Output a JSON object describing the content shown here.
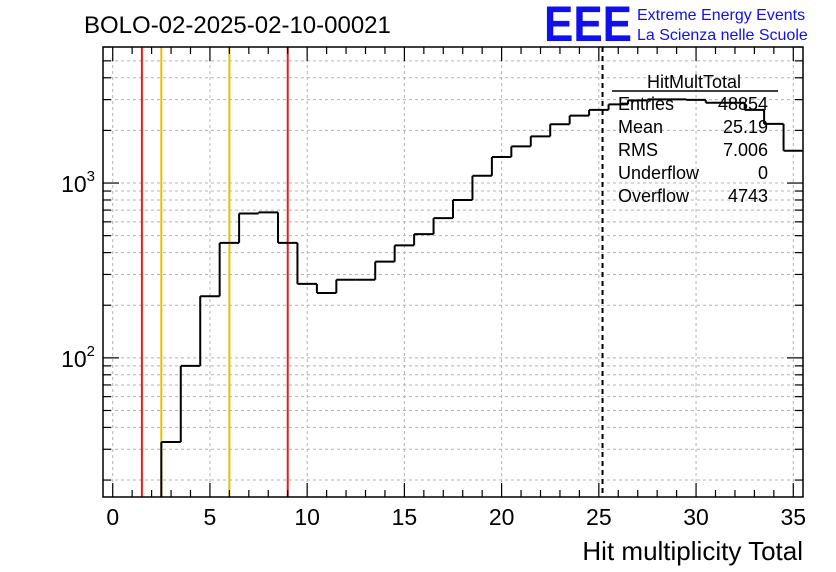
{
  "title": "BOLO-02-2025-02-10-00021",
  "logo": {
    "letters": "EEE",
    "line1": "Extreme Energy Events",
    "line2": "La Scienza nelle Scuole",
    "color": "#1010ee"
  },
  "stats": {
    "title": "HitMultTotal",
    "rows": [
      {
        "label": "Entries",
        "value": "48854"
      },
      {
        "label": "Mean",
        "value": "25.19"
      },
      {
        "label": "RMS",
        "value": "7.006"
      },
      {
        "label": "Underflow",
        "value": "0"
      },
      {
        "label": "Overflow",
        "value": "4743"
      }
    ]
  },
  "chart_data": {
    "type": "histogram",
    "xlabel": "Hit multiplicity Total",
    "ylabel": "",
    "xlim": [
      -0.5,
      35.5
    ],
    "ylim": [
      16,
      6000
    ],
    "log_y": true,
    "grid": true,
    "x_ticks": [
      0,
      5,
      10,
      15,
      20,
      25,
      30,
      35
    ],
    "y_ticks": [
      {
        "value": 100,
        "base": "10",
        "exp": "2"
      },
      {
        "value": 1000,
        "base": "10",
        "exp": "3"
      }
    ],
    "bin_edges_start": 2.5,
    "bin_width": 1,
    "values": [
      33,
      90,
      225,
      455,
      670,
      680,
      455,
      265,
      235,
      280,
      280,
      355,
      440,
      510,
      630,
      800,
      1100,
      1410,
      1620,
      1850,
      2170,
      2430,
      2620,
      2820,
      2970,
      3010,
      3010,
      2990,
      2880,
      2880,
      2620,
      2180,
      1530
    ],
    "vertical_lines": [
      {
        "x": 1.5,
        "color": "#e02020",
        "style": "solid"
      },
      {
        "x": 2.5,
        "color": "#e8c000",
        "style": "solid"
      },
      {
        "x": 6.0,
        "color": "#e8c000",
        "style": "solid"
      },
      {
        "x": 9.0,
        "color": "#e02020",
        "style": "solid"
      },
      {
        "x": 25.19,
        "color": "#000000",
        "style": "dashed"
      }
    ],
    "line_color": "#000000"
  }
}
